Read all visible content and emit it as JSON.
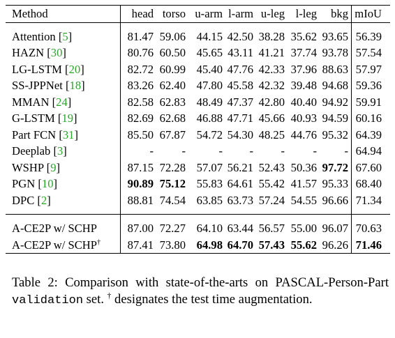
{
  "table": {
    "columns": [
      "Method",
      "head",
      "torso",
      "u-arm",
      "l-arm",
      "u-leg",
      "l-leg",
      "bkg",
      "mIoU"
    ],
    "groups": [
      [
        {
          "method": "Attention",
          "cite": "5",
          "values": [
            "81.47",
            "59.06",
            "44.15",
            "42.50",
            "38.28",
            "35.62",
            "93.65",
            "56.39"
          ],
          "bold": []
        },
        {
          "method": "HAZN",
          "cite": "30",
          "values": [
            "80.76",
            "60.50",
            "45.65",
            "43.11",
            "41.21",
            "37.74",
            "93.78",
            "57.54"
          ],
          "bold": []
        },
        {
          "method": "LG-LSTM",
          "cite": "20",
          "values": [
            "82.72",
            "60.99",
            "45.40",
            "47.76",
            "42.33",
            "37.96",
            "88.63",
            "57.97"
          ],
          "bold": []
        },
        {
          "method": "SS-JPPNet",
          "cite": "18",
          "values": [
            "83.26",
            "62.40",
            "47.80",
            "45.58",
            "42.32",
            "39.48",
            "94.68",
            "59.36"
          ],
          "bold": []
        },
        {
          "method": "MMAN",
          "cite": "24",
          "values": [
            "82.58",
            "62.83",
            "48.49",
            "47.37",
            "42.80",
            "40.40",
            "94.92",
            "59.91"
          ],
          "bold": []
        },
        {
          "method": "G-LSTM",
          "cite": "19",
          "values": [
            "82.69",
            "62.68",
            "46.88",
            "47.71",
            "45.66",
            "40.93",
            "94.59",
            "60.16"
          ],
          "bold": []
        },
        {
          "method": "Part FCN",
          "cite": "31",
          "values": [
            "85.50",
            "67.87",
            "54.72",
            "54.30",
            "48.25",
            "44.76",
            "95.32",
            "64.39"
          ],
          "bold": []
        },
        {
          "method": "Deeplab",
          "cite": "3",
          "values": [
            "-",
            "-",
            "-",
            "-",
            "-",
            "-",
            "-",
            "64.94"
          ],
          "bold": []
        },
        {
          "method": "WSHP",
          "cite": "9",
          "values": [
            "87.15",
            "72.28",
            "57.07",
            "56.21",
            "52.43",
            "50.36",
            "97.72",
            "67.60"
          ],
          "bold": [
            6
          ]
        },
        {
          "method": "PGN",
          "cite": "10",
          "values": [
            "90.89",
            "75.12",
            "55.83",
            "64.61",
            "55.42",
            "41.57",
            "95.33",
            "68.40"
          ],
          "bold": [
            0,
            1
          ]
        },
        {
          "method": "DPC",
          "cite": "2",
          "values": [
            "88.81",
            "74.54",
            "63.85",
            "63.73",
            "57.24",
            "54.55",
            "96.66",
            "71.34"
          ],
          "bold": []
        }
      ],
      [
        {
          "method": "A-CE2P w/ SCHP",
          "cite": "",
          "dagger": "",
          "values": [
            "87.00",
            "72.27",
            "64.10",
            "63.44",
            "56.57",
            "55.00",
            "96.07",
            "70.63"
          ],
          "bold": []
        },
        {
          "method": "A-CE2P w/ SCHP",
          "cite": "",
          "dagger": "†",
          "values": [
            "87.41",
            "73.80",
            "64.98",
            "64.70",
            "57.43",
            "55.62",
            "96.26",
            "71.46"
          ],
          "bold": [
            2,
            3,
            4,
            5,
            7
          ]
        }
      ]
    ]
  },
  "caption": {
    "prefix": "Table 2: Comparison with state-of-the-arts on PASCAL-Person-Part ",
    "mono": "validation",
    "middle": " set. ",
    "dagger": "†",
    "suffix": " designates the test time augmentation."
  }
}
